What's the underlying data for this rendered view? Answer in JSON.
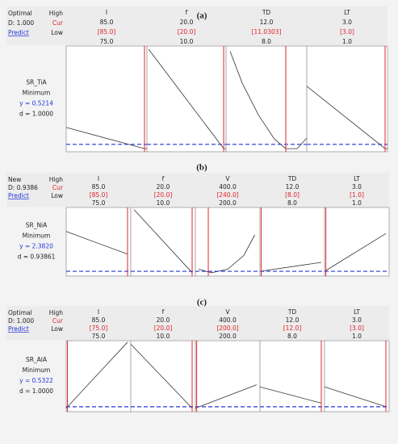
{
  "panels": [
    {
      "label": "(a)",
      "status": "Optimal",
      "d": "D: 1.000",
      "predict": "Predict",
      "high": "High",
      "cur": "Cur",
      "low": "Low",
      "factors": [
        {
          "name": "I",
          "high": "85.0",
          "cur": "[85.0]",
          "low": "75.0"
        },
        {
          "name": "f",
          "high": "20.0",
          "cur": "[20.0]",
          "low": "10.0"
        },
        {
          "name": "TD",
          "high": "12.0",
          "cur": "[11.0303]",
          "low": "8.0"
        },
        {
          "name": "LT",
          "high": "3.0",
          "cur": "[3.0]",
          "low": "1.0"
        }
      ],
      "response": {
        "name": "SR_TiA",
        "goal": "Minimum",
        "y": "y = 0.5214",
        "d": "d = 1.0000"
      }
    },
    {
      "label": "(b)",
      "status": "New",
      "d": "D: 0.9386",
      "predict": "Predict",
      "high": "High",
      "cur": "Cur",
      "low": "Low",
      "factors": [
        {
          "name": "I",
          "high": "85.0",
          "cur": "[85.0]",
          "low": "75.0"
        },
        {
          "name": "f",
          "high": "20.0",
          "cur": "[20.0]",
          "low": "10.0"
        },
        {
          "name": "V",
          "high": "400.0",
          "cur": "[240.0]",
          "low": "200.0"
        },
        {
          "name": "TD",
          "high": "12.0",
          "cur": "[8.0]",
          "low": "8.0"
        },
        {
          "name": "LT",
          "high": "3.0",
          "cur": "[1.0]",
          "low": "1.0"
        }
      ],
      "response": {
        "name": "SR_NiA",
        "goal": "Minimum",
        "y": "y = 2.3820",
        "d": "d = 0.93861"
      }
    },
    {
      "label": "(c)",
      "status": "Optimal",
      "d": "D: 1.000",
      "predict": "Predict",
      "high": "High",
      "cur": "Cur",
      "low": "Low",
      "factors": [
        {
          "name": "I",
          "high": "85.0",
          "cur": "[75.0]",
          "low": "75.0"
        },
        {
          "name": "f",
          "high": "20.0",
          "cur": "[20.0]",
          "low": "10.0"
        },
        {
          "name": "V",
          "high": "400.0",
          "cur": "[200.0]",
          "low": "200.0"
        },
        {
          "name": "TD",
          "high": "12.0",
          "cur": "[12.0]",
          "low": "8.0"
        },
        {
          "name": "LT",
          "high": "3.0",
          "cur": "[3.0]",
          "low": "1.0"
        }
      ],
      "response": {
        "name": "SR_AlA",
        "goal": "Minimum",
        "y": "y = 0.5322",
        "d": "d = 1.0000"
      }
    }
  ]
}
